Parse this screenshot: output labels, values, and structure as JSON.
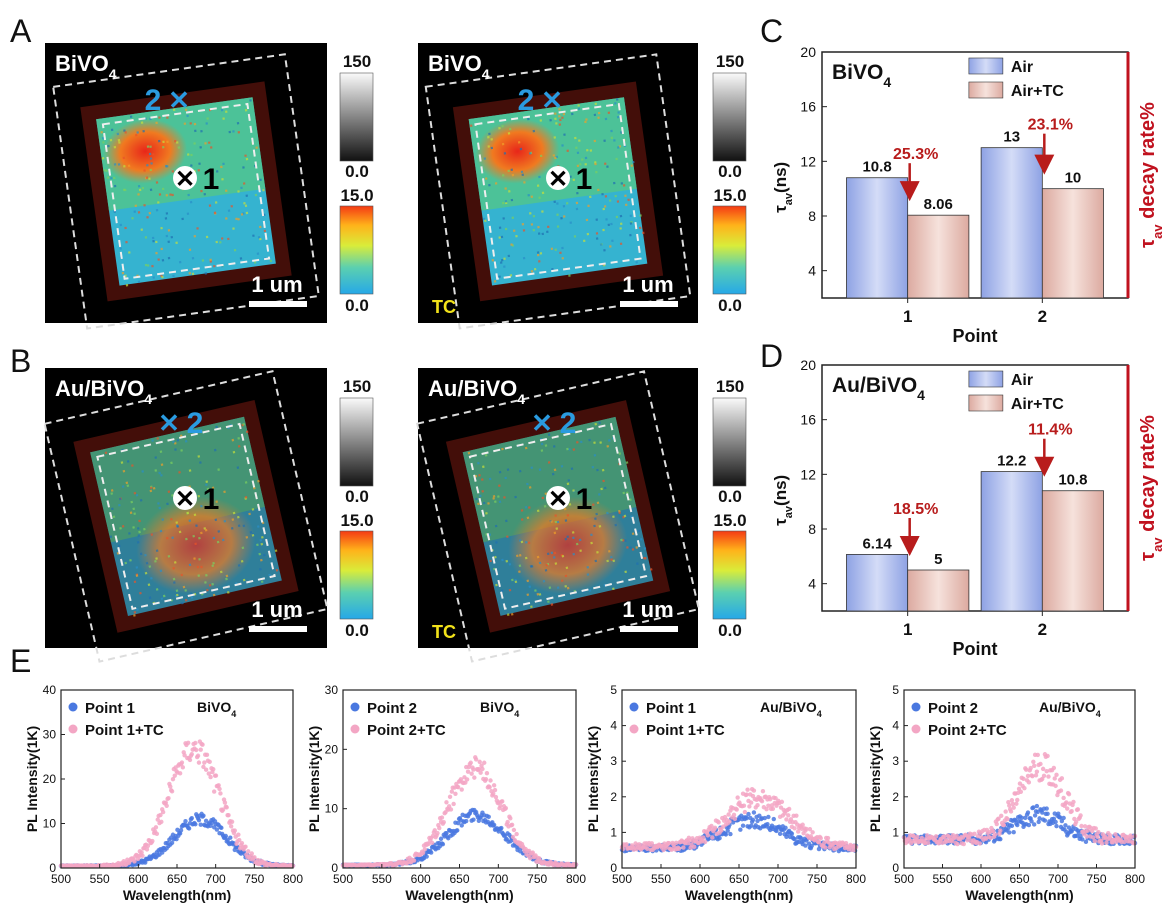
{
  "panel_letters": [
    "A",
    "B",
    "C",
    "D",
    "E"
  ],
  "images": [
    {
      "sample": "BiVO",
      "sub": "4",
      "point_a": "2",
      "point_b": "1",
      "scalebar": "1 um",
      "tc": "",
      "bar_top_max": "150",
      "bar_top_min": "0.0",
      "bar_bottom_max": "15.0",
      "bar_bottom_min": "0.0"
    },
    {
      "sample": "BiVO",
      "sub": "4",
      "point_a": "2",
      "point_b": "1",
      "scalebar": "1 um",
      "tc": "TC",
      "bar_top_max": "150",
      "bar_top_min": "0.0",
      "bar_bottom_max": "15.0",
      "bar_bottom_min": "0.0"
    },
    {
      "sample": "Au/BiVO",
      "sub": "4",
      "point_a": "2",
      "point_b": "1",
      "scalebar": "1 um",
      "tc": "",
      "bar_top_max": "150",
      "bar_top_min": "0.0",
      "bar_bottom_max": "15.0",
      "bar_bottom_min": "0.0"
    },
    {
      "sample": "Au/BiVO",
      "sub": "4",
      "point_a": "2",
      "point_b": "1",
      "scalebar": "1 um",
      "tc": "TC",
      "bar_top_max": "150",
      "bar_top_min": "0.0",
      "bar_bottom_max": "15.0",
      "bar_bottom_min": "0.0"
    }
  ],
  "colors": {
    "air": "#a8b8ea",
    "air_tc": "#e7bfb6",
    "arrow": "#b81c1c",
    "point1": "#4a78e0",
    "point2": "#f3a6c4",
    "crimson": "#c0121f",
    "tc_label": "#f2e21a",
    "blue_marker": "#2a9be0"
  },
  "chart_data": [
    {
      "type": "bar",
      "title": "BiVO",
      "title_sub": "4",
      "categories": [
        "1",
        "2"
      ],
      "series": [
        {
          "name": "Air",
          "values": [
            10.8,
            13
          ]
        },
        {
          "name": "Air+TC",
          "values": [
            8.06,
            10
          ]
        }
      ],
      "value_labels": [
        [
          "10.8",
          "13"
        ],
        [
          "8.06",
          "10"
        ]
      ],
      "annotations": [
        "25.3%",
        "23.1%"
      ],
      "xlabel": "Point",
      "ylabel_main": "τ",
      "ylabel_sub": "av",
      "ylabel_unit": "(ns)",
      "right_label_main": "τ",
      "right_label_sub": "av",
      "right_label_rest": " decay rate%",
      "ylim": [
        2,
        20
      ],
      "yticks": [
        4,
        8,
        12,
        16,
        20
      ]
    },
    {
      "type": "bar",
      "title": "Au/BiVO",
      "title_sub": "4",
      "categories": [
        "1",
        "2"
      ],
      "series": [
        {
          "name": "Air",
          "values": [
            6.14,
            12.2
          ]
        },
        {
          "name": "Air+TC",
          "values": [
            5,
            10.8
          ]
        }
      ],
      "value_labels": [
        [
          "6.14",
          "12.2"
        ],
        [
          "5",
          "10.8"
        ]
      ],
      "annotations": [
        "18.5%",
        "11.4%"
      ],
      "xlabel": "Point",
      "ylabel_main": "τ",
      "ylabel_sub": "av",
      "ylabel_unit": "(ns)",
      "right_label_main": "τ",
      "right_label_sub": "av",
      "right_label_rest": " decay rate%",
      "ylim": [
        2,
        20
      ],
      "yticks": [
        4,
        8,
        12,
        16,
        20
      ]
    },
    {
      "type": "scatter",
      "sample": "BiVO",
      "sample_sub": "4",
      "xlabel": "Wavelength(nm)",
      "ylabel": "PL Intensity(1K)",
      "xlim": [
        500,
        800
      ],
      "ylim": [
        0,
        40
      ],
      "xticks": [
        500,
        550,
        600,
        650,
        700,
        750,
        800
      ],
      "yticks": [
        0,
        10,
        20,
        30,
        40
      ],
      "series": [
        {
          "name": "Point 1",
          "peak_x": 680,
          "peak_y": 11,
          "width": 48,
          "base": 0.5
        },
        {
          "name": "Point 1+TC",
          "peak_x": 672,
          "peak_y": 27,
          "width": 46,
          "base": 0.5
        }
      ]
    },
    {
      "type": "scatter",
      "sample": "BiVO",
      "sample_sub": "4",
      "xlabel": "Wavelength(nm)",
      "ylabel": "PL Intensity(1K)",
      "xlim": [
        500,
        800
      ],
      "ylim": [
        0,
        30
      ],
      "xticks": [
        500,
        550,
        600,
        650,
        700,
        750,
        800
      ],
      "yticks": [
        0,
        10,
        20,
        30
      ],
      "series": [
        {
          "name": "Point 2",
          "peak_x": 672,
          "peak_y": 9,
          "width": 52,
          "base": 0.5
        },
        {
          "name": "Point 2+TC",
          "peak_x": 670,
          "peak_y": 17,
          "width": 48,
          "base": 0.5
        }
      ]
    },
    {
      "type": "scatter",
      "sample": "Au/BiVO",
      "sample_sub": "4",
      "xlabel": "Wavelength(nm)",
      "ylabel": "PL Intensity(1K)",
      "xlim": [
        500,
        800
      ],
      "ylim": [
        0,
        5
      ],
      "xticks": [
        500,
        550,
        600,
        650,
        700,
        750,
        800
      ],
      "yticks": [
        0,
        1,
        2,
        3,
        4,
        5
      ],
      "series": [
        {
          "name": "Point 1",
          "peak_x": 668,
          "peak_y": 1.35,
          "width": 55,
          "base": 0.55
        },
        {
          "name": "Point 1+TC",
          "peak_x": 675,
          "peak_y": 2.0,
          "width": 55,
          "base": 0.6
        }
      ]
    },
    {
      "type": "scatter",
      "sample": "Au/BiVO",
      "sample_sub": "4",
      "xlabel": "Wavelength(nm)",
      "ylabel": "PL Intensity(1K)",
      "xlim": [
        500,
        800
      ],
      "ylim": [
        0,
        5
      ],
      "xticks": [
        500,
        550,
        600,
        650,
        700,
        750,
        800
      ],
      "yticks": [
        0,
        1,
        2,
        3,
        4,
        5
      ],
      "series": [
        {
          "name": "Point 2",
          "peak_x": 675,
          "peak_y": 1.5,
          "width": 42,
          "base": 0.8
        },
        {
          "name": "Point 2+TC",
          "peak_x": 678,
          "peak_y": 2.9,
          "width": 42,
          "base": 0.8
        }
      ]
    }
  ]
}
